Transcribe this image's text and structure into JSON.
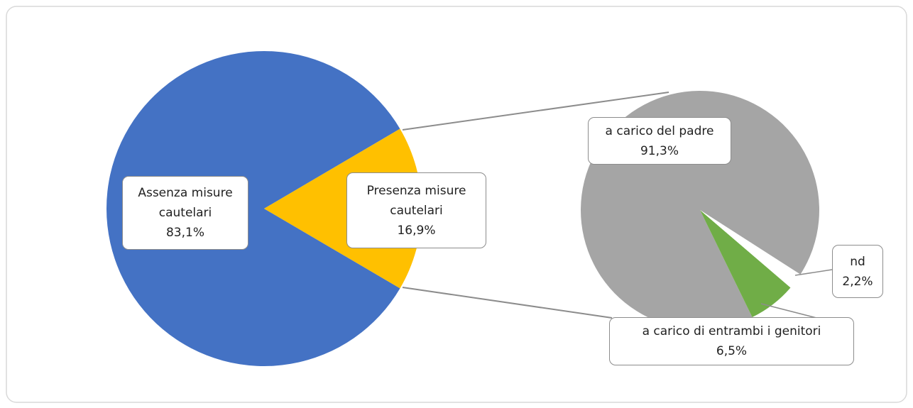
{
  "chart_data": [
    {
      "type": "pie",
      "categories": [
        "Assenza misure cautelari",
        "Presenza misure cautelari"
      ],
      "values": [
        83.1,
        16.9
      ],
      "value_labels": [
        "83,1%",
        "16,9%"
      ],
      "colors": [
        "#4472c4",
        "#ffc000"
      ]
    },
    {
      "type": "pie",
      "categories": [
        "a carico del padre",
        "a carico di entrambi i genitori",
        "nd"
      ],
      "values": [
        91.3,
        6.5,
        2.2
      ],
      "value_labels": [
        "91,3%",
        "6,5%",
        "2,2%"
      ],
      "colors": [
        "#a5a5a5",
        "#70ad47",
        "#ffffff"
      ]
    }
  ]
}
